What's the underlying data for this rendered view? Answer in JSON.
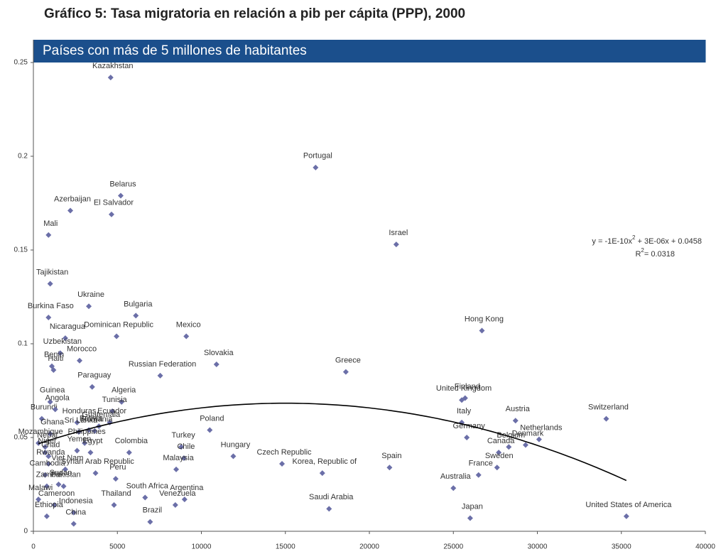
{
  "chart_data": {
    "type": "scatter",
    "title": "Gráfico 5: Tasa migratoria en relación a pib per cápita (PPP), 2000",
    "subtitle": "Países con más de 5 millones de habitantes",
    "color": "#6b6fa8",
    "xlim": [
      0,
      40000
    ],
    "xticks": [
      0,
      5000,
      10000,
      15000,
      20000,
      25000,
      30000,
      35000,
      40000
    ],
    "ylim": [
      0,
      0.25
    ],
    "yticks": [
      0,
      0.05,
      0.1,
      0.15,
      0.2,
      0.25
    ],
    "point_labels": [
      "Kazakhstan",
      "Portugal",
      "Belarus",
      "Azerbaijan",
      "El Salvador",
      "Mali",
      "Israel",
      "Tajikistan",
      "Ukraine",
      "Burkina Faso",
      "Bulgaria",
      "Nicaragua",
      "Dominican Republic",
      "Mexico",
      "Hong Kong",
      "Uzbekistan",
      "Morocco",
      "Benin",
      "Haiti",
      "Slovakia",
      "Greece",
      "Russian Federation",
      "Paraguay",
      "Finland",
      "United Kingdom",
      "Guinea",
      "Algeria",
      "Tunisia",
      "Burundi",
      "Angola",
      "Switzerland",
      "Poland",
      "Honduras",
      "Ecuador",
      "Guatemala",
      "Ghana",
      "Sri Lanka",
      "Bolivia",
      "Romania",
      "Austria",
      "Italy",
      "Germany",
      "Netherlands",
      "Belgium",
      "Denmark",
      "Canada",
      "Sweden",
      "France",
      "Turkey",
      "Colombia",
      "Mozambique",
      "Nepal",
      "Niger",
      "Chad",
      "Philippines",
      "Yemen",
      "Egypt",
      "Hungary",
      "Chile",
      "Czech Republic",
      "Korea, Republic of",
      "Spain",
      "Peru",
      "Syrian Arab Republic",
      "Malaysia",
      "Rwanda",
      "Viet Nam",
      "Cambodia",
      "Pakistan",
      "Sudan",
      "Zambia",
      "Australia",
      "South Africa",
      "Argentina",
      "Venezuela",
      "Thailand",
      "Saudi Arabia",
      "Malawi",
      "Cameroon",
      "Indonesia",
      "China",
      "Ethiopia",
      "Brazil",
      "Japan",
      "United States of America"
    ],
    "x": [
      4600,
      16800,
      5200,
      2200,
      4650,
      900,
      21600,
      1000,
      3300,
      900,
      6100,
      1900,
      4950,
      9100,
      26700,
      1600,
      2750,
      1100,
      1200,
      10900,
      18600,
      7550,
      3500,
      25700,
      25500,
      1000,
      5250,
      4700,
      500,
      1300,
      34100,
      10500,
      2600,
      4550,
      3900,
      1000,
      2700,
      3300,
      3650,
      28700,
      25500,
      25800,
      30100,
      28300,
      29300,
      27700,
      27600,
      26500,
      8800,
      5700,
      300,
      700,
      700,
      900,
      3050,
      2600,
      3400,
      11900,
      8960,
      14800,
      17200,
      21200,
      4900,
      3700,
      8500,
      900,
      1900,
      700,
      1800,
      1500,
      800,
      25000,
      6650,
      9000,
      8450,
      4800,
      17600,
      300,
      1250,
      2400,
      2400,
      800,
      6950,
      26000,
      35300
    ],
    "values": [
      0.242,
      0.194,
      0.179,
      0.171,
      0.169,
      0.158,
      0.153,
      0.132,
      0.12,
      0.114,
      0.115,
      0.103,
      0.104,
      0.104,
      0.107,
      0.095,
      0.091,
      0.088,
      0.086,
      0.089,
      0.085,
      0.083,
      0.077,
      0.071,
      0.07,
      0.069,
      0.069,
      0.064,
      0.06,
      0.065,
      0.06,
      0.054,
      0.058,
      0.058,
      0.056,
      0.052,
      0.053,
      0.054,
      0.0535,
      0.059,
      0.058,
      0.05,
      0.049,
      0.045,
      0.046,
      0.042,
      0.034,
      0.03,
      0.045,
      0.042,
      0.047,
      0.045,
      0.042,
      0.04,
      0.047,
      0.043,
      0.042,
      0.04,
      0.039,
      0.036,
      0.031,
      0.034,
      0.028,
      0.031,
      0.033,
      0.036,
      0.033,
      0.03,
      0.024,
      0.025,
      0.024,
      0.023,
      0.018,
      0.017,
      0.014,
      0.014,
      0.012,
      0.017,
      0.014,
      0.01,
      0.004,
      0.008,
      0.005,
      0.007,
      0.008
    ],
    "trendline": {
      "type": "polynomial",
      "coefficients": [
        -1e-10,
        3e-06,
        0.0458
      ],
      "equation": [
        "y = -1E-10x",
        "2",
        " + 3E-06x + 0.0458"
      ],
      "r2": [
        "R",
        "2",
        "= 0.0318"
      ]
    }
  }
}
